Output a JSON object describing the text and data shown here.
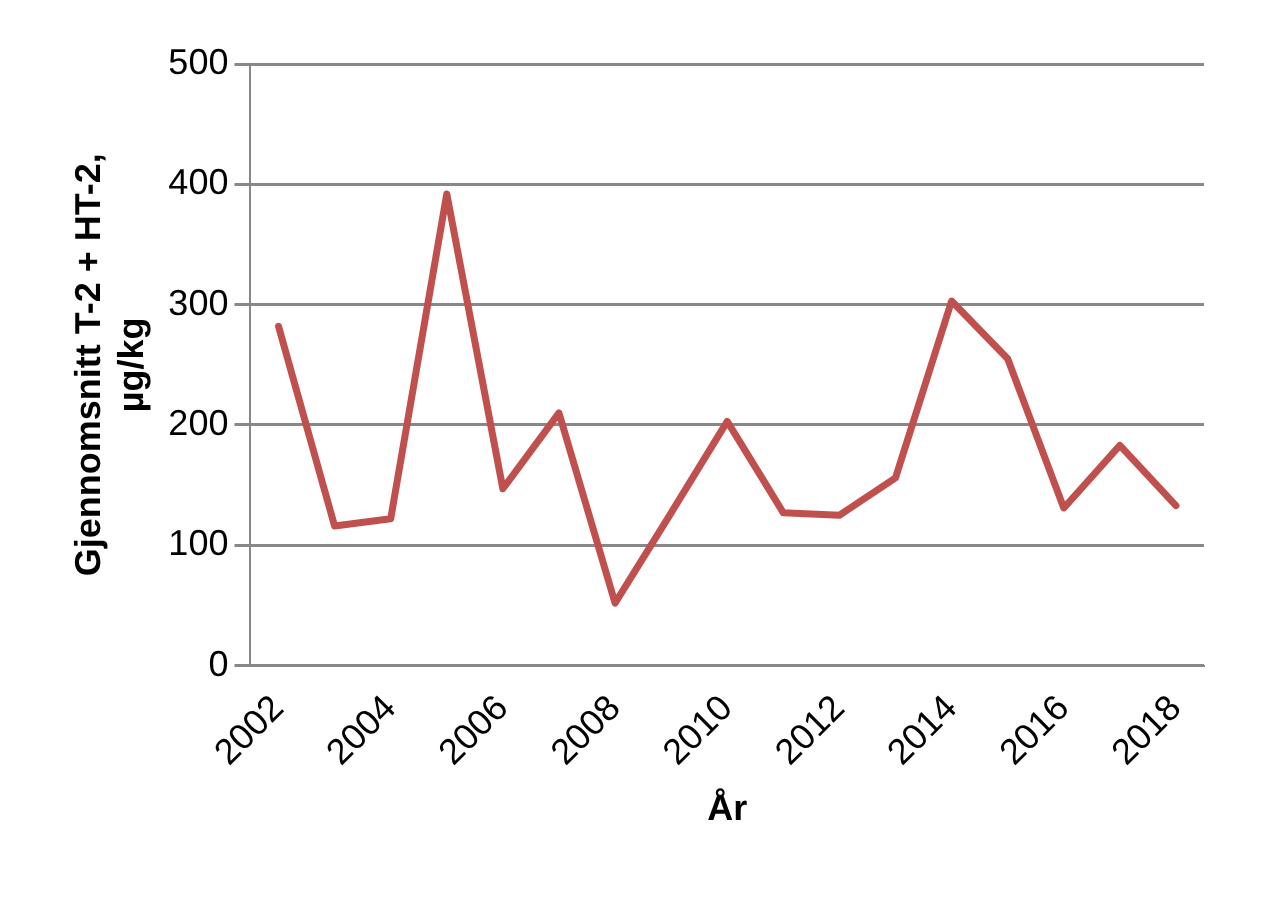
{
  "chart_data": {
    "type": "line",
    "xlabel": "År",
    "ylabel": "Gjennomsnitt T-2 + HT-2, µg/kg",
    "categories": [
      "2002",
      null,
      "2004",
      null,
      "2006",
      null,
      "2008",
      null,
      "2010",
      null,
      "2012",
      null,
      "2014",
      null,
      "2016",
      null,
      "2018"
    ],
    "series": [
      {
        "color": "#c0504d",
        "values": [
          282,
          116,
          122,
          392,
          147,
          210,
          52,
          127,
          203,
          127,
          125,
          156,
          303,
          255,
          131,
          183,
          133
        ]
      }
    ],
    "ylim": [
      0,
      500
    ],
    "yticks": [
      0,
      100,
      200,
      300,
      400,
      500
    ],
    "grid": "y",
    "legend": false,
    "marker": "none",
    "line_style": "solid"
  }
}
